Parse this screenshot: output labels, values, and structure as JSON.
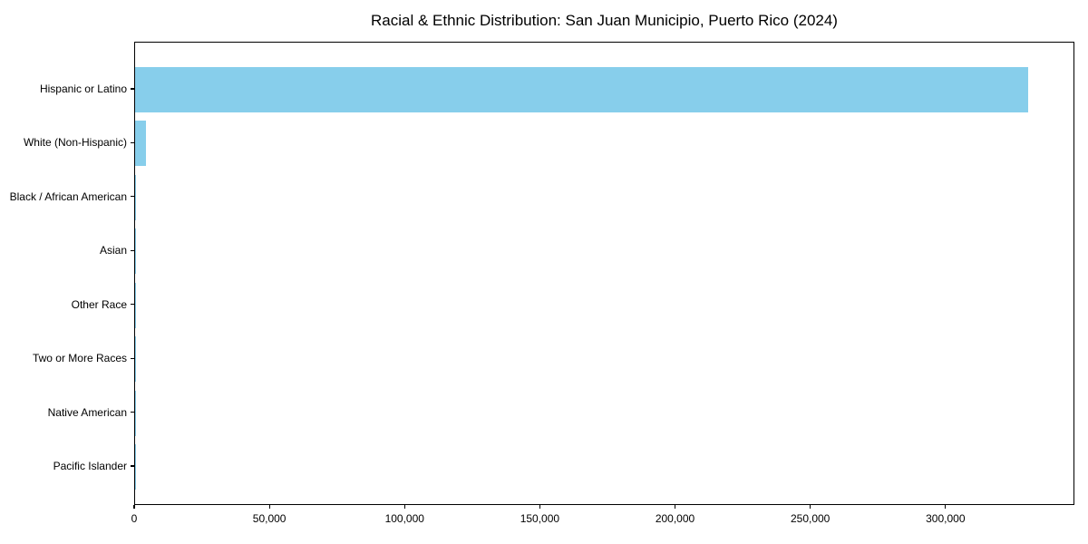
{
  "chart_data": {
    "type": "bar",
    "orientation": "horizontal",
    "title": "Racial & Ethnic Distribution: San Juan Municipio, Puerto Rico (2024)",
    "xlabel": "",
    "ylabel": "",
    "categories": [
      "Hispanic or Latino",
      "White (Non-Hispanic)",
      "Black / African American",
      "Asian",
      "Other Race",
      "Two or More Races",
      "Native American",
      "Pacific Islander"
    ],
    "values": [
      330400,
      4100,
      400,
      350,
      330,
      250,
      120,
      50
    ],
    "bar_color": "#87CEEB",
    "xlim": [
      0,
      347000
    ],
    "x_ticks": [
      0,
      50000,
      100000,
      150000,
      200000,
      250000,
      300000
    ],
    "x_tick_labels": [
      "0",
      "50,000",
      "100,000",
      "150,000",
      "200,000",
      "250,000",
      "300,000"
    ],
    "grid": false,
    "legend": false,
    "background_color": "#ffffff",
    "text_color": "#000000"
  }
}
